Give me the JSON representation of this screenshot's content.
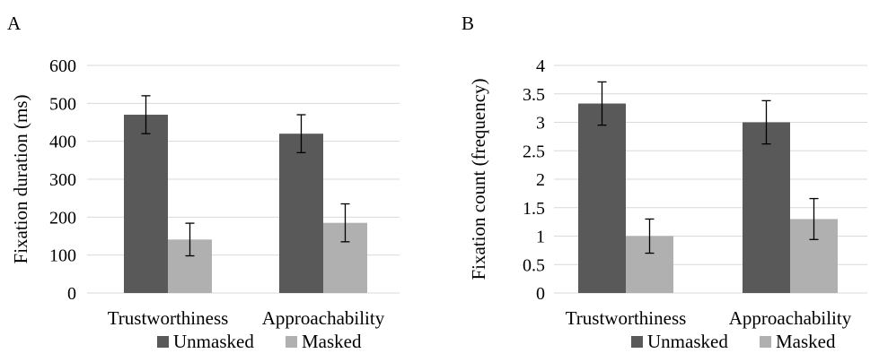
{
  "colors": {
    "unmasked": "#595959",
    "masked": "#b0b0b0",
    "grid": "#d9d9d9",
    "axis": "#d9d9d9",
    "error": "#000000"
  },
  "chart_data": [
    {
      "panel": "A",
      "type": "bar",
      "title": "",
      "ylabel": "Fixation duration (ms)",
      "xlabel": "",
      "categories": [
        "Trustworthiness",
        "Approachability"
      ],
      "ylim": [
        0,
        600
      ],
      "yticks": [
        0,
        100,
        200,
        300,
        400,
        500,
        600
      ],
      "grid": true,
      "legend": "bottom",
      "series": [
        {
          "name": "Unmasked",
          "values": [
            470,
            420
          ],
          "errors": [
            50,
            50
          ],
          "color": "#595959"
        },
        {
          "name": "Masked",
          "values": [
            141,
            185
          ],
          "errors": [
            43,
            50
          ],
          "color": "#b0b0b0"
        }
      ]
    },
    {
      "panel": "B",
      "type": "bar",
      "title": "",
      "ylabel": "Fixation count (frequency)",
      "xlabel": "",
      "categories": [
        "Trustworthiness",
        "Approachability"
      ],
      "ylim": [
        0,
        4
      ],
      "yticks": [
        0,
        0.5,
        1,
        1.5,
        2,
        2.5,
        3,
        3.5,
        4
      ],
      "grid": true,
      "legend": "bottom",
      "series": [
        {
          "name": "Unmasked",
          "values": [
            3.33,
            3.0
          ],
          "errors": [
            0.38,
            0.38
          ],
          "color": "#595959"
        },
        {
          "name": "Masked",
          "values": [
            1.0,
            1.3
          ],
          "errors": [
            0.3,
            0.36
          ],
          "color": "#b0b0b0"
        }
      ]
    }
  ]
}
